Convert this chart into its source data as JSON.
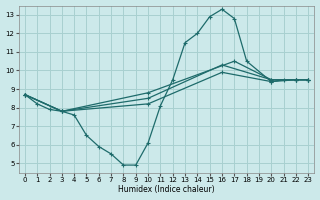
{
  "xlabel": "Humidex (Indice chaleur)",
  "bg_color": "#cce9ea",
  "grid_color": "#a8d0d0",
  "line_color": "#1e6b6b",
  "xlim": [
    -0.5,
    23.5
  ],
  "ylim": [
    4.5,
    13.5
  ],
  "xticks": [
    0,
    1,
    2,
    3,
    4,
    5,
    6,
    7,
    8,
    9,
    10,
    11,
    12,
    13,
    14,
    15,
    16,
    17,
    18,
    19,
    20,
    21,
    22,
    23
  ],
  "yticks": [
    5,
    6,
    7,
    8,
    9,
    10,
    11,
    12,
    13
  ],
  "lines": [
    {
      "x": [
        0,
        1,
        2,
        3,
        4,
        5,
        6,
        7,
        8,
        9,
        10,
        11,
        12,
        13,
        14,
        15,
        16,
        17,
        18,
        20,
        21,
        22,
        23
      ],
      "y": [
        8.7,
        8.2,
        7.9,
        7.8,
        7.6,
        6.5,
        5.9,
        5.5,
        4.9,
        4.9,
        6.1,
        8.1,
        9.5,
        11.5,
        12.0,
        12.9,
        13.3,
        12.8,
        10.5,
        9.4,
        9.5,
        9.5,
        9.5
      ]
    },
    {
      "x": [
        0,
        3,
        10,
        16,
        20,
        22,
        23
      ],
      "y": [
        8.7,
        7.8,
        8.2,
        9.9,
        9.4,
        9.5,
        9.5
      ]
    },
    {
      "x": [
        0,
        3,
        10,
        16,
        20,
        22,
        23
      ],
      "y": [
        8.7,
        7.8,
        8.5,
        10.3,
        9.5,
        9.5,
        9.5
      ]
    },
    {
      "x": [
        0,
        3,
        10,
        17,
        20,
        22,
        23
      ],
      "y": [
        8.7,
        7.8,
        8.8,
        10.5,
        9.5,
        9.5,
        9.5
      ]
    }
  ]
}
